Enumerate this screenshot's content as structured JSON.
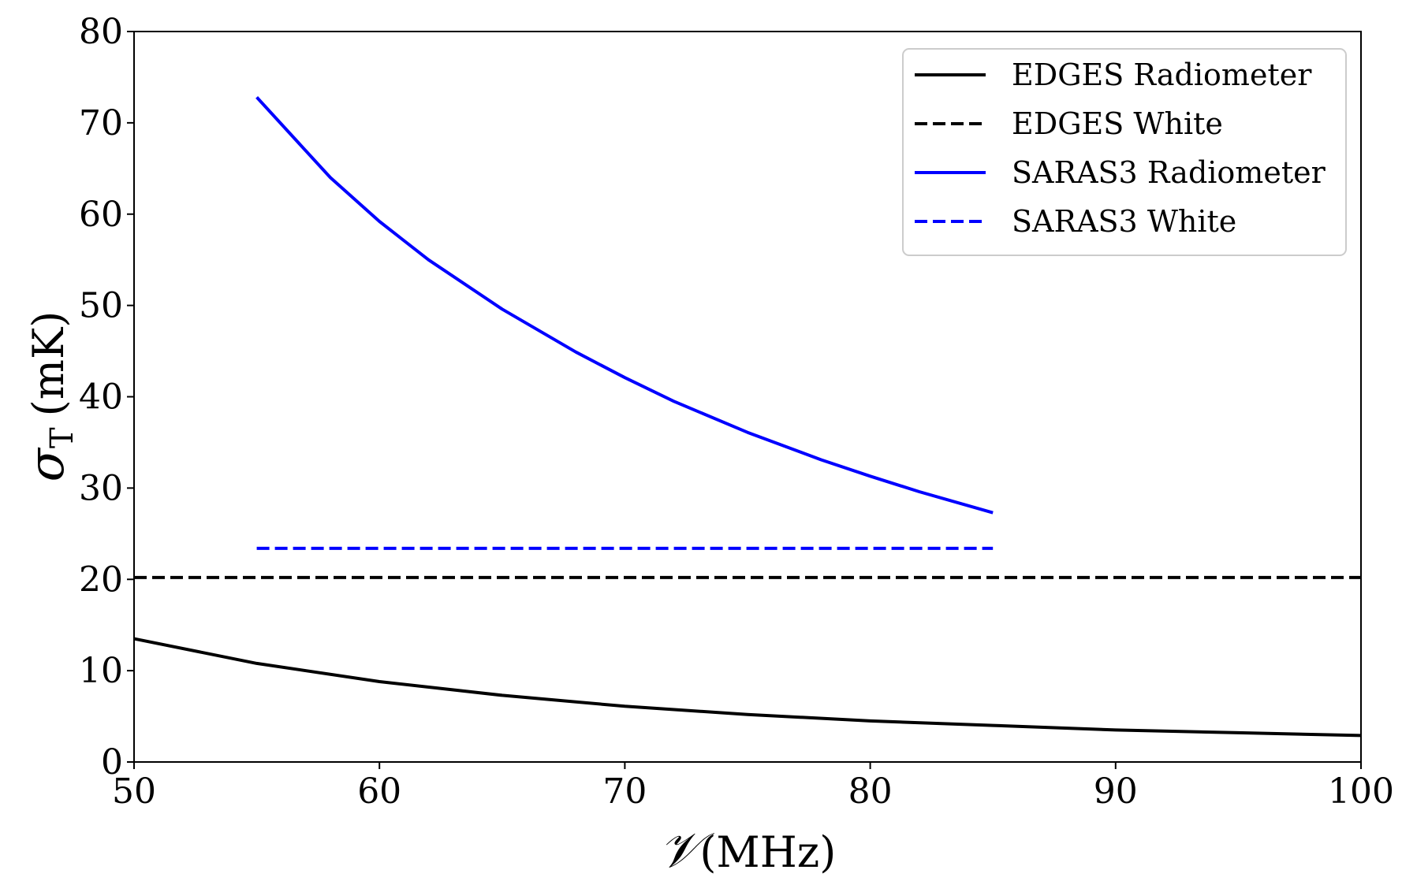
{
  "chart_data": {
    "type": "line",
    "title": "",
    "xlabel": {
      "symbol": "𝒱",
      "unit": "(MHz)"
    },
    "ylabel": {
      "symbol": "σ",
      "subscript": "T",
      "unit": "(mK)"
    },
    "xlim": [
      50,
      100
    ],
    "ylim": [
      0,
      80
    ],
    "xticks": [
      50,
      60,
      70,
      80,
      90,
      100
    ],
    "yticks": [
      0,
      10,
      20,
      30,
      40,
      50,
      60,
      70,
      80
    ],
    "grid": false,
    "legend_position": "top-right",
    "series": [
      {
        "name": "EDGES Radiometer",
        "color": "#000000",
        "style": "solid",
        "x": [
          50,
          55,
          60,
          65,
          70,
          75,
          80,
          85,
          90,
          95,
          100
        ],
        "y": [
          13.5,
          10.8,
          8.8,
          7.3,
          6.1,
          5.2,
          4.5,
          4.0,
          3.5,
          3.2,
          2.9
        ]
      },
      {
        "name": "EDGES White",
        "color": "#000000",
        "style": "dashed",
        "x": [
          50,
          100
        ],
        "y": [
          20.2,
          20.2
        ]
      },
      {
        "name": "SARAS3 Radiometer",
        "color": "#0000ff",
        "style": "solid",
        "x": [
          55,
          58,
          60,
          62,
          65,
          68,
          70,
          72,
          75,
          78,
          80,
          82,
          85
        ],
        "y": [
          72.8,
          64.0,
          59.2,
          55.0,
          49.6,
          44.9,
          42.1,
          39.5,
          36.1,
          33.1,
          31.3,
          29.6,
          27.3
        ]
      },
      {
        "name": "SARAS3 White",
        "color": "#0000ff",
        "style": "dashed",
        "x": [
          55,
          85
        ],
        "y": [
          23.4,
          23.4
        ]
      }
    ]
  }
}
